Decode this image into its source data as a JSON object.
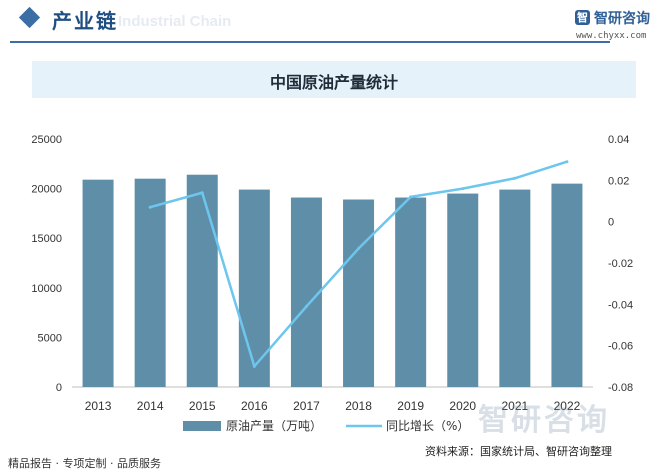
{
  "header": {
    "title": "产业链",
    "watermark": "Industrial Chain"
  },
  "logo": {
    "mark": "智",
    "name": "智研咨询",
    "url": "www.chyxx.com"
  },
  "colors": {
    "bar": "#5f8fa8",
    "line": "#6cc6ee",
    "accent": "#3a6ea5",
    "banner": "#e6f2f9"
  },
  "chart_data": {
    "type": "bar",
    "title": "中国原油产量统计",
    "categories": [
      "2013",
      "2014",
      "2015",
      "2016",
      "2017",
      "2018",
      "2019",
      "2020",
      "2021",
      "2022"
    ],
    "series": [
      {
        "name": "原油产量（万吨）",
        "type": "bar",
        "axis": "left",
        "values": [
          20900,
          21000,
          21400,
          19900,
          19100,
          18900,
          19100,
          19500,
          19900,
          20500
        ]
      },
      {
        "name": "同比增长（%）",
        "type": "line",
        "axis": "right",
        "values": [
          null,
          0.007,
          0.014,
          -0.07,
          -0.041,
          -0.013,
          0.012,
          0.016,
          0.021,
          0.029
        ]
      }
    ],
    "y_left": {
      "ylim": [
        0,
        25000
      ],
      "ticks": [
        "0",
        "5000",
        "10000",
        "15000",
        "20000",
        "25000"
      ]
    },
    "y_right": {
      "ylim": [
        -0.08,
        0.04
      ],
      "ticks": [
        "-0.08",
        "-0.06",
        "-0.04",
        "-0.02",
        "0",
        "0.02",
        "0.04"
      ]
    },
    "legend_position": "bottom",
    "grid": false
  },
  "footer": {
    "left": "精品报告 · 专项定制 · 品质服务",
    "source": "资料来源：国家统计局、智研咨询整理",
    "watermark": "智研咨询"
  }
}
